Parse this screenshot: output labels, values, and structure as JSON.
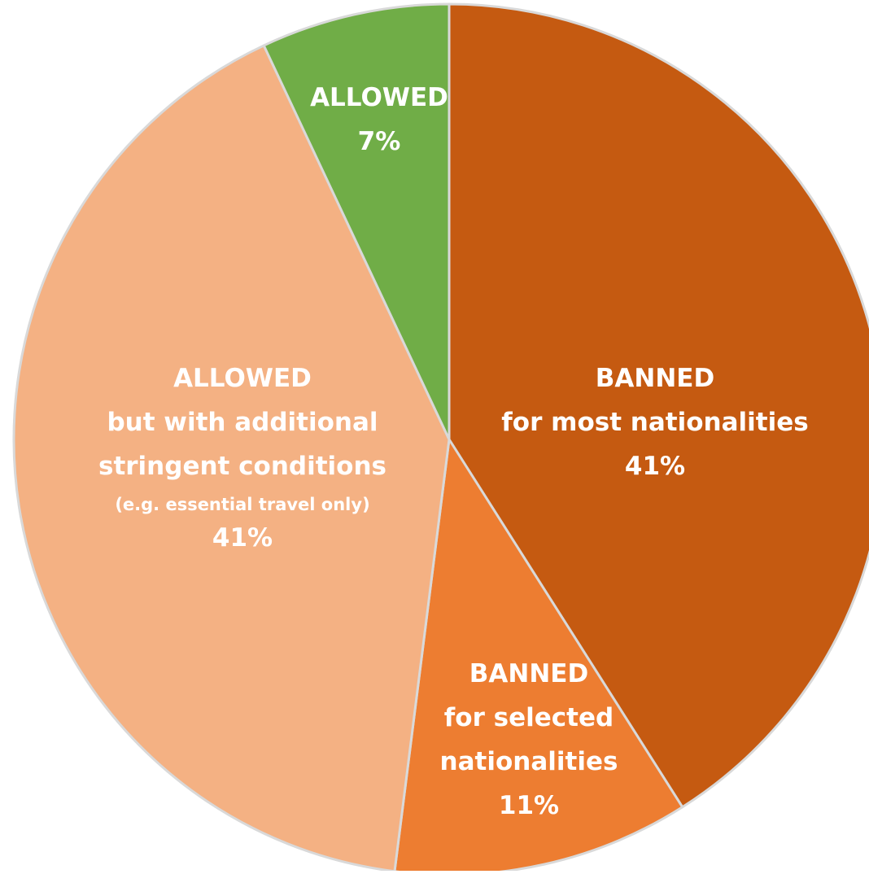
{
  "chart_data": {
    "type": "pie",
    "slices": [
      {
        "id": "banned-most",
        "value": 41,
        "color": "#C55A11",
        "label_lines": [
          "BANNED",
          "for most nationalities",
          "41%"
        ],
        "line_styles": [
          "main",
          "main",
          "pct"
        ]
      },
      {
        "id": "banned-selected",
        "value": 11,
        "color": "#ED7D31",
        "label_lines": [
          "BANNED",
          "for selected",
          "nationalities",
          "11%"
        ],
        "line_styles": [
          "main",
          "main",
          "main",
          "pct"
        ]
      },
      {
        "id": "allowed-stringent",
        "value": 41,
        "color": "#F4B183",
        "label_lines": [
          "ALLOWED",
          "but with additional",
          "stringent conditions",
          "(e.g. essential travel only)",
          "41%"
        ],
        "line_styles": [
          "main",
          "main",
          "main",
          "small",
          "pct"
        ]
      },
      {
        "id": "allowed",
        "value": 7,
        "color": "#70AD47",
        "label_lines": [
          "ALLOWED",
          "7%"
        ],
        "line_styles": [
          "main",
          "pct"
        ]
      }
    ],
    "start_angle_deg": 0,
    "direction": "clockwise",
    "legend": "none",
    "title": ""
  }
}
